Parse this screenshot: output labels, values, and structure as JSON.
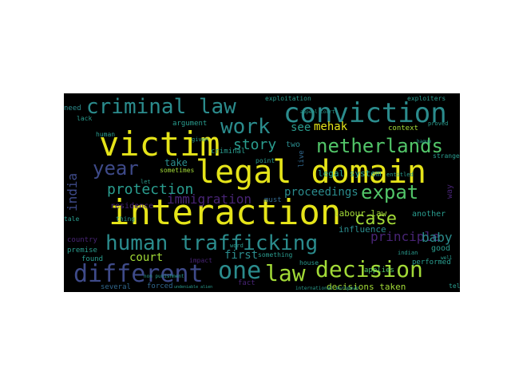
{
  "palette": {
    "yellow": "#e5e419",
    "lime": "#a2da37",
    "green": "#52c569",
    "teal": "#2a9d8f",
    "cyan": "#2b8c8d",
    "blue": "#31688e",
    "indigo": "#3e4a89",
    "purple": "#482475"
  },
  "words": [
    {
      "text": "interaction",
      "weight": 1.0,
      "color": "yellow"
    },
    {
      "text": "legal domain",
      "weight": 0.9,
      "color": "yellow"
    },
    {
      "text": "victim",
      "weight": 0.9,
      "color": "yellow"
    },
    {
      "text": "conviction",
      "weight": 0.75,
      "color": "cyan"
    },
    {
      "text": "human trafficking",
      "weight": 0.7,
      "color": "cyan"
    },
    {
      "text": "criminal law",
      "weight": 0.6,
      "color": "cyan"
    },
    {
      "text": "different",
      "weight": 0.6,
      "color": "indigo"
    },
    {
      "text": "decision",
      "weight": 0.6,
      "color": "lime"
    },
    {
      "text": "one",
      "weight": 0.55,
      "color": "cyan"
    },
    {
      "text": "law",
      "weight": 0.55,
      "color": "lime"
    },
    {
      "text": "netherlands",
      "weight": 0.5,
      "color": "green"
    },
    {
      "text": "work",
      "weight": 0.5,
      "color": "cyan"
    },
    {
      "text": "year",
      "weight": 0.45,
      "color": "indigo"
    },
    {
      "text": "case",
      "weight": 0.45,
      "color": "lime"
    },
    {
      "text": "expat",
      "weight": 0.45,
      "color": "green"
    },
    {
      "text": "protection",
      "weight": 0.4,
      "color": "teal"
    },
    {
      "text": "story",
      "weight": 0.35,
      "color": "teal"
    },
    {
      "text": "immigration",
      "weight": 0.35,
      "color": "purple"
    },
    {
      "text": "proceedings",
      "weight": 0.3,
      "color": "cyan"
    },
    {
      "text": "principle",
      "weight": 0.3,
      "color": "purple"
    },
    {
      "text": "india",
      "weight": 0.3,
      "color": "indigo"
    },
    {
      "text": "baby",
      "weight": 0.3,
      "color": "cyan"
    },
    {
      "text": "mehak",
      "weight": 0.25,
      "color": "yellow"
    },
    {
      "text": "court",
      "weight": 0.25,
      "color": "lime"
    },
    {
      "text": "see",
      "weight": 0.25,
      "color": "teal"
    },
    {
      "text": "first",
      "weight": 0.25,
      "color": "cyan"
    },
    {
      "text": "decisions taken",
      "weight": 0.22,
      "color": "lime"
    },
    {
      "text": "labour law",
      "weight": 0.2,
      "color": "lime"
    },
    {
      "text": "influence",
      "weight": 0.2,
      "color": "cyan"
    },
    {
      "text": "exploitation",
      "weight": 0.18,
      "color": "teal"
    },
    {
      "text": "exploiters",
      "weight": 0.18,
      "color": "teal"
    },
    {
      "text": "legal system",
      "weight": 0.18,
      "color": "teal"
    },
    {
      "text": "context",
      "weight": 0.18,
      "color": "lime"
    },
    {
      "text": "argument",
      "weight": 0.18,
      "color": "teal"
    },
    {
      "text": "residence",
      "weight": 0.18,
      "color": "purple"
    },
    {
      "text": "take",
      "weight": 0.18,
      "color": "cyan"
    },
    {
      "text": "need",
      "weight": 0.17,
      "color": "cyan"
    },
    {
      "text": "another",
      "weight": 0.17,
      "color": "teal"
    },
    {
      "text": "good",
      "weight": 0.17,
      "color": "teal"
    },
    {
      "text": "proved",
      "weight": 0.17,
      "color": "teal"
    },
    {
      "text": "strange",
      "weight": 0.17,
      "color": "teal"
    },
    {
      "text": "criminal",
      "weight": 0.17,
      "color": "teal"
    },
    {
      "text": "two",
      "weight": 0.17,
      "color": "cyan"
    },
    {
      "text": "must",
      "weight": 0.17,
      "color": "blue"
    },
    {
      "text": "live",
      "weight": 0.17,
      "color": "blue"
    },
    {
      "text": "way",
      "weight": 0.17,
      "color": "purple"
    },
    {
      "text": "several",
      "weight": 0.16,
      "color": "blue"
    },
    {
      "text": "forced",
      "weight": 0.16,
      "color": "blue"
    },
    {
      "text": "fact",
      "weight": 0.16,
      "color": "purple"
    },
    {
      "text": "found",
      "weight": 0.16,
      "color": "teal"
    },
    {
      "text": "impact",
      "weight": 0.15,
      "color": "purple"
    },
    {
      "text": "country",
      "weight": 0.15,
      "color": "purple"
    },
    {
      "text": "premise",
      "weight": 0.15,
      "color": "teal"
    },
    {
      "text": "applies",
      "weight": 0.15,
      "color": "green"
    },
    {
      "text": "performed",
      "weight": 0.15,
      "color": "teal"
    },
    {
      "text": "tell",
      "weight": 0.15,
      "color": "teal"
    },
    {
      "text": "something",
      "weight": 0.14,
      "color": "teal"
    },
    {
      "text": "house",
      "weight": 0.14,
      "color": "teal"
    },
    {
      "text": "thing",
      "weight": 0.14,
      "color": "teal"
    },
    {
      "text": "tale",
      "weight": 0.14,
      "color": "teal"
    },
    {
      "text": "human",
      "weight": 0.14,
      "color": "teal"
    },
    {
      "text": "lack",
      "weight": 0.14,
      "color": "teal"
    },
    {
      "text": "sometimes",
      "weight": 0.14,
      "color": "lime"
    },
    {
      "text": "point",
      "weight": 0.14,
      "color": "teal"
    },
    {
      "text": "given",
      "weight": 0.14,
      "color": "teal"
    },
    {
      "text": "indian",
      "weight": 0.14,
      "color": "teal"
    },
    {
      "text": "entitled",
      "weight": 0.14,
      "color": "teal"
    },
    {
      "text": "hague",
      "weight": 0.12,
      "color": "teal"
    },
    {
      "text": "international european",
      "weight": 0.12,
      "color": "teal"
    },
    {
      "text": "non punishment",
      "weight": 0.12,
      "color": "teal"
    },
    {
      "text": "appeal court",
      "weight": 0.12,
      "color": "teal"
    },
    {
      "text": "word",
      "weight": 0.12,
      "color": "teal"
    },
    {
      "text": "let",
      "weight": 0.12,
      "color": "teal"
    },
    {
      "text": "well",
      "weight": 0.12,
      "color": "teal"
    },
    {
      "text": "undeniable alien",
      "weight": 0.1,
      "color": "teal"
    }
  ]
}
